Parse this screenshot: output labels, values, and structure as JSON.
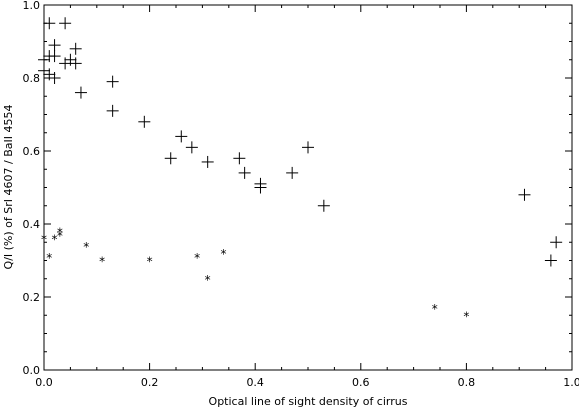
{
  "chart_data": {
    "type": "scatter",
    "title": "",
    "xlabel": "Optical line of sight density of cirrus",
    "ylabel": "Q/I (%) of SrI 4607 / BaII 4554",
    "xlim": [
      0.0,
      1.0
    ],
    "ylim": [
      0.0,
      1.0
    ],
    "x_ticks": [
      0.0,
      0.2,
      0.4,
      0.6,
      0.8,
      1.0
    ],
    "y_ticks": [
      0.0,
      0.2,
      0.4,
      0.6,
      0.8,
      1.0
    ],
    "x_tick_labels": [
      "0.0",
      "0.2",
      "0.4",
      "0.6",
      "0.8",
      "1.0"
    ],
    "y_tick_labels": [
      "0.0",
      "0.2",
      "0.4",
      "0.6",
      "0.8",
      "1.0"
    ],
    "grid": false,
    "series": [
      {
        "marker": "plus",
        "color": "#000000",
        "points": [
          [
            0.01,
            0.95
          ],
          [
            0.04,
            0.95
          ],
          [
            0.02,
            0.89
          ],
          [
            0.0,
            0.85
          ],
          [
            0.01,
            0.86
          ],
          [
            0.02,
            0.86
          ],
          [
            0.06,
            0.88
          ],
          [
            0.05,
            0.85
          ],
          [
            0.04,
            0.84
          ],
          [
            0.06,
            0.84
          ],
          [
            0.0,
            0.82
          ],
          [
            0.01,
            0.81
          ],
          [
            0.02,
            0.8
          ],
          [
            0.07,
            0.76
          ],
          [
            0.13,
            0.79
          ],
          [
            0.13,
            0.71
          ],
          [
            0.19,
            0.68
          ],
          [
            0.26,
            0.64
          ],
          [
            0.28,
            0.61
          ],
          [
            0.24,
            0.58
          ],
          [
            0.31,
            0.57
          ],
          [
            0.37,
            0.58
          ],
          [
            0.38,
            0.54
          ],
          [
            0.41,
            0.51
          ],
          [
            0.41,
            0.5
          ],
          [
            0.47,
            0.54
          ],
          [
            0.5,
            0.61
          ],
          [
            0.53,
            0.45
          ],
          [
            0.91,
            0.48
          ],
          [
            0.97,
            0.35
          ],
          [
            0.96,
            0.3
          ]
        ]
      },
      {
        "marker": "asterisk",
        "color": "#000000",
        "points": [
          [
            0.0,
            0.36
          ],
          [
            0.02,
            0.36
          ],
          [
            0.03,
            0.38
          ],
          [
            0.03,
            0.37
          ],
          [
            0.01,
            0.31
          ],
          [
            0.08,
            0.34
          ],
          [
            0.11,
            0.3
          ],
          [
            0.2,
            0.3
          ],
          [
            0.29,
            0.31
          ],
          [
            0.34,
            0.32
          ],
          [
            0.31,
            0.25
          ],
          [
            0.74,
            0.17
          ],
          [
            0.8,
            0.15
          ]
        ]
      }
    ]
  }
}
